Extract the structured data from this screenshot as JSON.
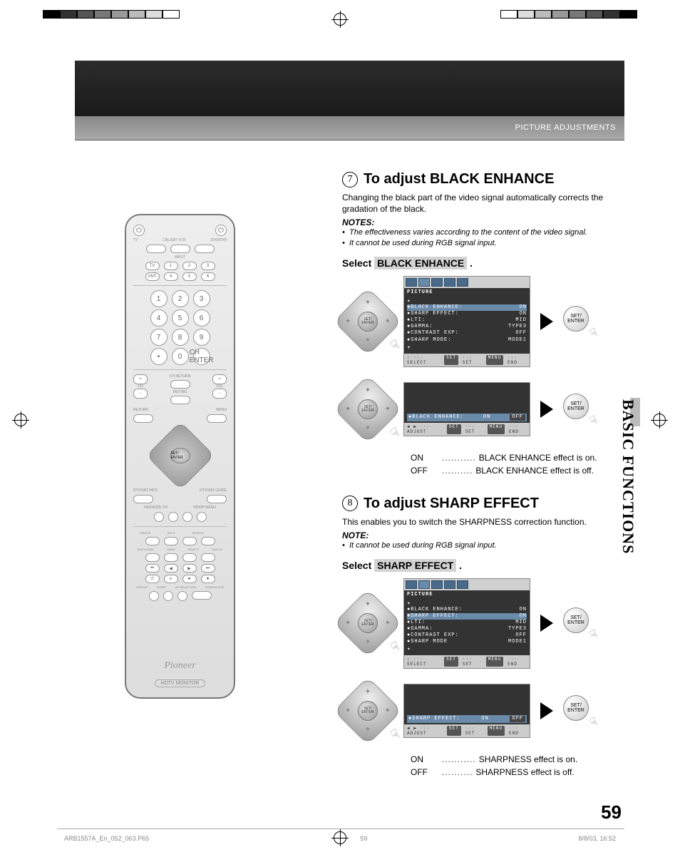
{
  "header": {
    "category": "PICTURE ADJUSTMENTS"
  },
  "side_tab": "BASIC FUNCTIONS",
  "page_number": "59",
  "footer": {
    "file": "ARB1557A_En_052_063.P65",
    "page": "59",
    "datetime": "8/8/03, 16:52"
  },
  "remote": {
    "brand": "Pioneer",
    "model": "HDTV MONITOR",
    "set_enter": "SET/\nENTER",
    "top_labels": [
      "TV",
      "CBL/SAT VCR",
      "DVD/DVR"
    ],
    "input_row1": [
      "TV",
      "1",
      "2",
      "3"
    ],
    "input_labels": [
      "INPUT",
      "DIGITAL"
    ],
    "input_row2": [
      "ANT",
      "4",
      "5",
      "6"
    ],
    "numpad": [
      [
        "1",
        "2",
        "3"
      ],
      [
        "4",
        "5",
        "6"
      ],
      [
        "7",
        "8",
        "9"
      ],
      [
        "•",
        "0",
        "CH ENTER"
      ]
    ],
    "ch_vol": {
      "ch": "CH",
      "vol": "VOL",
      "return": "CH RETURN",
      "muting": "MUTING"
    },
    "menu_row": [
      "RETURN",
      "MENU"
    ],
    "info_row": [
      "DTV/SAT INFO",
      "DTV/SAT GUIDE"
    ],
    "fav_row": [
      "FAVORITE CH",
      "HD/DP MENU"
    ],
    "func_rows": [
      [
        "FREEZE",
        "SPLIT",
        "SEARCH",
        ""
      ],
      [
        "EDIT/LEARN",
        "SWAP",
        "SELECT",
        "SUB CH"
      ]
    ],
    "transport": [
      "⏮",
      "◀",
      "▶",
      "⏭"
    ],
    "rec_row": [
      "SOURCE",
      "",
      "REC",
      "STOP"
    ],
    "bottom_row": [
      "DISPLAY",
      "SLEEP",
      "AV SELECTION",
      "SCREEN SIZE"
    ]
  },
  "section7": {
    "num": "7",
    "title": "To adjust BLACK ENHANCE",
    "intro": "Changing the black part of the video signal automatically corrects the gradation of the black.",
    "notes_label": "NOTES:",
    "notes": [
      "The effectiveness varies according to the content of the video signal.",
      "It cannot be used during RGB signal input."
    ],
    "select_prefix": "Select",
    "select_item": "BLACK ENHANCE",
    "select_suffix": ".",
    "osd1": {
      "title": "PICTURE",
      "rows": [
        {
          "k": "BLACK ENHANCE:",
          "v": "ON",
          "hl": true
        },
        {
          "k": "SHARP EFFECT:",
          "v": "ON"
        },
        {
          "k": "LTI:",
          "v": "MID"
        },
        {
          "k": "GAMMA:",
          "v": "TYPE3"
        },
        {
          "k": "CONTRAST EXP:",
          "v": "OFF"
        },
        {
          "k": "SHARP MODE:",
          "v": "MODE1"
        }
      ],
      "footer": [
        "↕ ··· SELECT",
        "SET ··· SET",
        "MENU ··· END"
      ]
    },
    "osd2": {
      "label": "BLACK ENHANCE:",
      "on": "ON",
      "off": "OFF",
      "footer": [
        "◀ ▶ ··· ADJUST",
        "SET ··· SET",
        "MENU ··· END"
      ]
    },
    "results": [
      {
        "k": "ON",
        "dots": "...........",
        "v": "BLACK ENHANCE effect is on."
      },
      {
        "k": "OFF",
        "dots": "..........",
        "v": "BLACK ENHANCE effect is off."
      }
    ]
  },
  "section8": {
    "num": "8",
    "title": "To adjust SHARP EFFECT",
    "intro": "This enables you to switch the SHARPNESS correction function.",
    "notes_label": "NOTE:",
    "notes": [
      "It cannot be used during RGB signal input."
    ],
    "select_prefix": "Select",
    "select_item": "SHARP EFFECT",
    "select_suffix": ".",
    "osd1": {
      "title": "PICTURE",
      "rows": [
        {
          "k": "BLACK ENHANCE:",
          "v": "ON"
        },
        {
          "k": "SHARP EFFECT:",
          "v": "ON",
          "hl": true
        },
        {
          "k": "LTI:",
          "v": "MID"
        },
        {
          "k": "GAMMA:",
          "v": "TYPE3"
        },
        {
          "k": "CONTRAST EXP:",
          "v": "OFF"
        },
        {
          "k": "SHARP MODE",
          "v": "MODE1"
        }
      ],
      "footer": [
        "↕ ··· SELECT",
        "SET ··· SET",
        "MENU ··· END"
      ]
    },
    "osd2": {
      "label": "SHARP EFFECT:",
      "on": "ON",
      "off": "OFF",
      "footer": [
        "◀ ▶ ··· ADJUST",
        "SET ··· SET",
        "MENU ··· END"
      ]
    },
    "results": [
      {
        "k": "ON",
        "dots": "...........",
        "v": "SHARPNESS effect is on."
      },
      {
        "k": "OFF",
        "dots": "..........",
        "v": "SHARPNESS effect is off."
      }
    ]
  },
  "set_enter_label": "SET/\nENTER",
  "colorbar": [
    "#000",
    "#333",
    "#555",
    "#777",
    "#999",
    "#bbb",
    "#ddd",
    "#fff"
  ]
}
